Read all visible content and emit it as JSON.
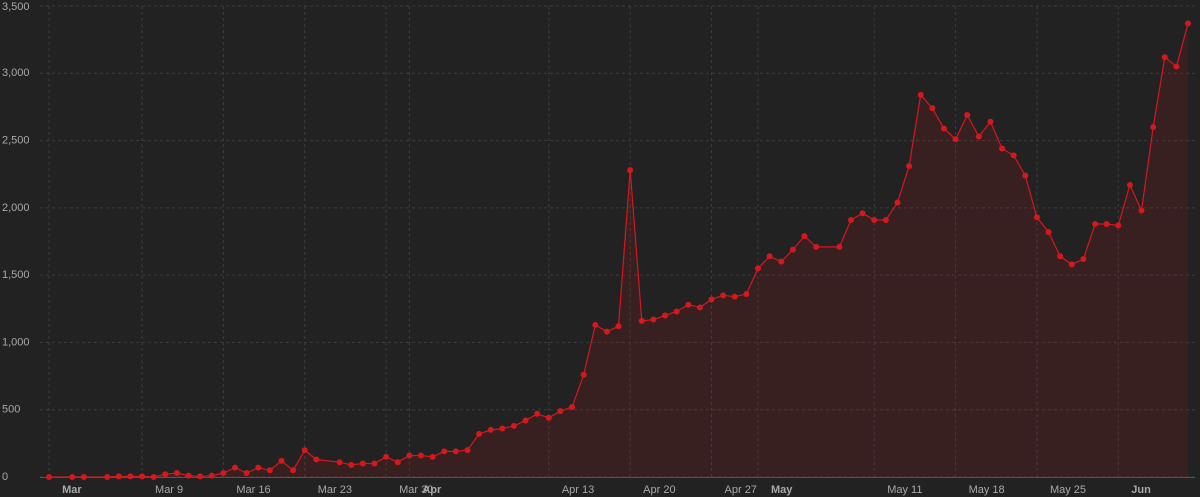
{
  "chart_data": {
    "type": "area",
    "color": "#d3181e",
    "x": [
      0,
      2,
      3,
      5,
      6,
      7,
      8,
      9,
      10,
      11,
      12,
      13,
      14,
      15,
      16,
      17,
      18,
      19,
      20,
      21,
      22,
      23,
      25,
      26,
      27,
      28,
      29,
      30,
      31,
      32,
      33,
      34,
      35,
      36,
      37,
      38,
      39,
      40,
      41,
      42,
      43,
      44,
      45,
      46,
      47,
      48,
      49,
      50,
      51,
      52,
      53,
      54,
      55,
      56,
      57,
      58,
      59,
      60,
      61,
      62,
      63,
      64,
      65,
      66,
      68,
      69,
      70,
      71,
      72,
      73,
      74,
      75,
      76,
      77,
      78,
      79,
      80,
      81,
      82,
      83,
      84,
      85,
      86,
      87,
      88,
      89,
      90,
      91,
      92,
      93,
      94,
      95,
      96,
      97,
      98
    ],
    "values": [
      0,
      0,
      0,
      0,
      5,
      5,
      5,
      0,
      20,
      30,
      10,
      5,
      10,
      30,
      70,
      30,
      70,
      50,
      120,
      50,
      200,
      130,
      110,
      90,
      100,
      100,
      150,
      110,
      160,
      160,
      150,
      190,
      190,
      200,
      320,
      350,
      360,
      380,
      420,
      470,
      440,
      490,
      520,
      760,
      1130,
      1080,
      1120,
      2280,
      1160,
      1170,
      1200,
      1230,
      1280,
      1260,
      1320,
      1350,
      1340,
      1360,
      1550,
      1640,
      1600,
      1690,
      1790,
      1710,
      1710,
      1910,
      1960,
      1910,
      1910,
      2040,
      2310,
      2840,
      2740,
      2590,
      2510,
      2690,
      2530,
      2640,
      2440,
      2390,
      2240,
      1930,
      1820,
      1640,
      1580,
      1620,
      1880,
      1880,
      1870,
      2170,
      1980,
      2600,
      3120,
      3050,
      3370
    ],
    "xlim": [
      -0.35,
      98.6
    ],
    "xticks": [
      {
        "value": 0,
        "label": "Mar"
      },
      {
        "value": 8,
        "label": "Mar 9"
      },
      {
        "value": 15,
        "label": "Mar 16"
      },
      {
        "value": 22,
        "label": "Mar 23"
      },
      {
        "value": 29,
        "label": "Mar 30"
      },
      {
        "value": 31,
        "label": "Apr"
      },
      {
        "value": 43,
        "label": "Apr 13"
      },
      {
        "value": 50,
        "label": "Apr 20"
      },
      {
        "value": 57,
        "label": "Apr 27"
      },
      {
        "value": 61,
        "label": "May"
      },
      {
        "value": 71,
        "label": "May 11"
      },
      {
        "value": 78,
        "label": "May 18"
      },
      {
        "value": 85,
        "label": "May 25"
      },
      {
        "value": 92,
        "label": "Jun"
      }
    ],
    "ylim": [
      0,
      3500
    ],
    "yticks": [
      0,
      {
        "value": 500,
        "label": "500"
      },
      {
        "value": 1000,
        "label": "1,000"
      },
      {
        "value": 1500,
        "label": "1,500"
      },
      {
        "value": 2000,
        "label": "2,000"
      },
      {
        "value": 2500,
        "label": "2,500"
      },
      {
        "value": 3000,
        "label": "3,000"
      },
      {
        "value": 3500,
        "label": "3,500"
      }
    ],
    "grid": true
  }
}
